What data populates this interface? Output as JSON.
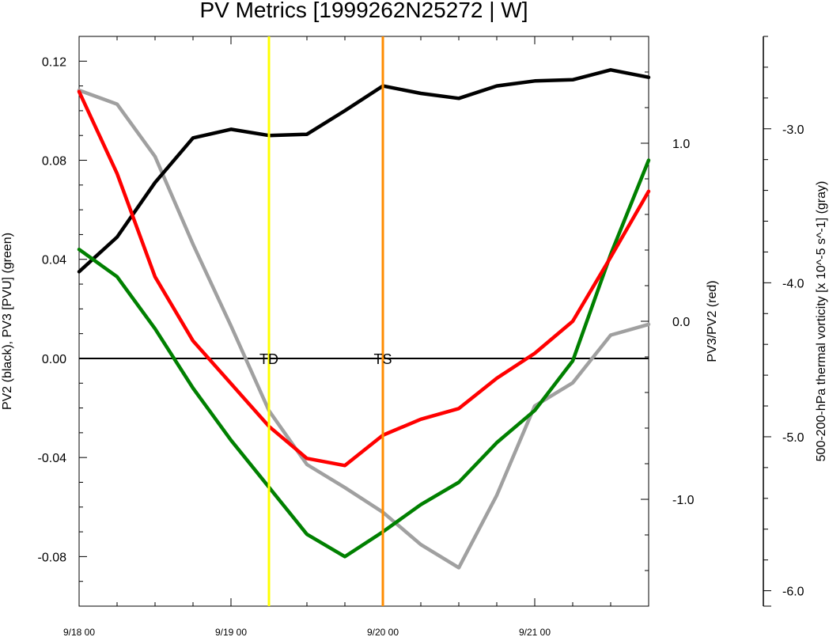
{
  "chart_data": {
    "type": "line",
    "title": "PV Metrics [1999262N25272 | W]",
    "x_tick_labels": [
      "9/18 00",
      "9/19 00",
      "9/20 00",
      "9/21 00"
    ],
    "x_hours": [
      0,
      6,
      12,
      18,
      24,
      30,
      36,
      42,
      48,
      54,
      60,
      66,
      72,
      78,
      84,
      90
    ],
    "x_range_hours": [
      0,
      90
    ],
    "left_axis": {
      "label": "PV2 (black), PV3 [PVU] (green)",
      "range": [
        -0.1,
        0.13
      ],
      "ticks": [
        -0.08,
        -0.04,
        0.0,
        0.04,
        0.08,
        0.12
      ],
      "tick_labels": [
        "-0.08",
        "-0.04",
        "0.00",
        "0.04",
        "0.08",
        "0.12"
      ]
    },
    "right_axis_1": {
      "label": "PV3/PV2 (red)",
      "range": [
        -1.6,
        1.6
      ],
      "ticks": [
        -1.0,
        0.0,
        1.0
      ],
      "tick_labels": [
        "-1.0",
        "0.0",
        "1.0"
      ]
    },
    "right_axis_2": {
      "label": "500-200-hPa thermal vorticity [x 10^-5 s^-1] (gray)",
      "range": [
        -6.1,
        -2.4
      ],
      "ticks": [
        -6.0,
        -5.0,
        -4.0,
        -3.0
      ],
      "tick_labels": [
        "-6.0",
        "-5.0",
        "-4.0",
        "-3.0"
      ]
    },
    "series": [
      {
        "name": "PV2",
        "axis": "left",
        "color": "#000000",
        "values": [
          0.035,
          0.049,
          0.071,
          0.089,
          0.0925,
          0.09,
          0.0905,
          0.1,
          0.11,
          0.107,
          0.105,
          0.11,
          0.112,
          0.1125,
          0.1165,
          0.1135
        ]
      },
      {
        "name": "PV3",
        "axis": "left",
        "color": "#008000",
        "values": [
          0.044,
          0.033,
          0.012,
          -0.012,
          -0.033,
          -0.052,
          -0.071,
          -0.08,
          -0.07,
          -0.059,
          -0.05,
          -0.034,
          -0.021,
          -0.001,
          0.042,
          0.08
        ]
      },
      {
        "name": "PV3/PV2",
        "axis": "right1",
        "color": "#ff0000",
        "values": [
          1.29,
          0.83,
          0.25,
          -0.11,
          -0.35,
          -0.59,
          -0.77,
          -0.81,
          -0.64,
          -0.55,
          -0.49,
          -0.32,
          -0.18,
          0.0,
          0.36,
          0.73
        ]
      },
      {
        "name": "500-200-hPa thermal vorticity",
        "axis": "right2",
        "color": "#a0a0a0",
        "values": [
          -2.75,
          -2.84,
          -3.18,
          -3.75,
          -4.28,
          -4.83,
          -5.18,
          -5.33,
          -5.49,
          -5.7,
          -5.85,
          -5.38,
          -4.8,
          -4.65,
          -4.34,
          -4.27
        ]
      }
    ],
    "vertical_lines": [
      {
        "hours": 30,
        "color": "#ffff00",
        "label": "TD"
      },
      {
        "hours": 48,
        "color": "#ff8c00",
        "label": "TS"
      }
    ],
    "zero_line": 0.0,
    "grid": false,
    "legend": "none"
  }
}
